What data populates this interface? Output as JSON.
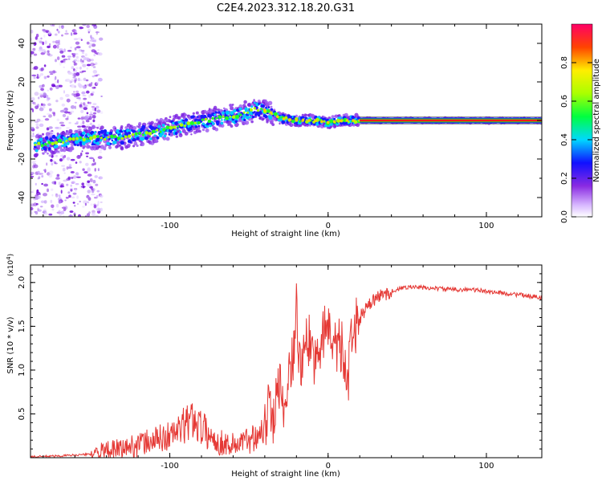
{
  "title": "C2E4.2023.312.18.20.G31",
  "colors": {
    "snr_line": "#e53935",
    "axis": "#000000",
    "noise": "#b07ff0",
    "ridge": "#ff1a1a"
  },
  "chart_data": [
    {
      "type": "heatmap",
      "title": "C2E4.2023.312.18.20.G31",
      "xlabel": "Height of straight line (km)",
      "ylabel": "Frequency (Hz)",
      "xlim": [
        -188,
        135
      ],
      "ylim": [
        -50,
        50
      ],
      "xticks": [
        -100,
        0,
        100
      ],
      "xtick_labels": [
        "-100",
        "0",
        "100"
      ],
      "yticks": [
        -40,
        -20,
        0,
        20,
        40
      ],
      "ytick_labels": [
        "-40",
        "-20",
        "0",
        "20",
        "40"
      ],
      "ridge": {
        "x": [
          -185,
          -170,
          -150,
          -130,
          -110,
          -90,
          -70,
          -55,
          -45,
          -38,
          -30,
          -20,
          -10,
          0,
          10,
          20,
          60,
          100,
          135
        ],
        "y": [
          -13,
          -11,
          -9,
          -9,
          -6,
          -2,
          1,
          3,
          6,
          5,
          1,
          0,
          0,
          -1,
          0,
          0,
          0,
          0,
          0
        ]
      },
      "colorbar": {
        "label": "Normalized spectral amplitude",
        "range": [
          0,
          1
        ],
        "ticks": [
          0.0,
          0.2,
          0.4,
          0.6,
          0.8
        ],
        "tick_labels": [
          "0.0",
          "0.2",
          "0.4",
          "0.6",
          "0.8"
        ]
      }
    },
    {
      "type": "line",
      "xlabel": "Height of straight line (km)",
      "ylabel": "SNR (10 * v/v)",
      "yscale_label": "(x10",
      "yscale_exp": "4",
      "yscale_close": ")",
      "xlim": [
        -188,
        135
      ],
      "ylim": [
        0,
        2.2
      ],
      "xticks": [
        -100,
        0,
        100
      ],
      "xtick_labels": [
        "-100",
        "0",
        "100"
      ],
      "yticks": [
        0.5,
        1.0,
        1.5,
        2.0
      ],
      "ytick_labels": [
        "0.5",
        "1.0",
        "1.5",
        "2.0"
      ],
      "series": [
        {
          "name": "SNR",
          "x": [
            -188,
            -170,
            -150,
            -140,
            -130,
            -120,
            -110,
            -100,
            -95,
            -90,
            -85,
            -80,
            -75,
            -70,
            -60,
            -50,
            -40,
            -38,
            -35,
            -30,
            -28,
            -25,
            -22,
            -20,
            -18,
            -15,
            -12,
            -10,
            -5,
            0,
            5,
            10,
            12,
            15,
            20,
            25,
            30,
            40,
            50,
            60,
            70,
            80,
            90,
            100,
            110,
            120,
            135
          ],
          "y": [
            0.01,
            0.02,
            0.04,
            0.07,
            0.1,
            0.15,
            0.2,
            0.25,
            0.3,
            0.38,
            0.45,
            0.35,
            0.25,
            0.18,
            0.15,
            0.2,
            0.35,
            0.55,
            0.45,
            0.95,
            0.6,
            1.0,
            1.2,
            1.75,
            1.05,
            1.25,
            1.35,
            1.15,
            1.3,
            1.55,
            1.35,
            1.2,
            0.75,
            1.4,
            1.6,
            1.72,
            1.82,
            1.9,
            1.95,
            1.94,
            1.93,
            1.92,
            1.92,
            1.9,
            1.88,
            1.86,
            1.83
          ]
        }
      ]
    }
  ]
}
